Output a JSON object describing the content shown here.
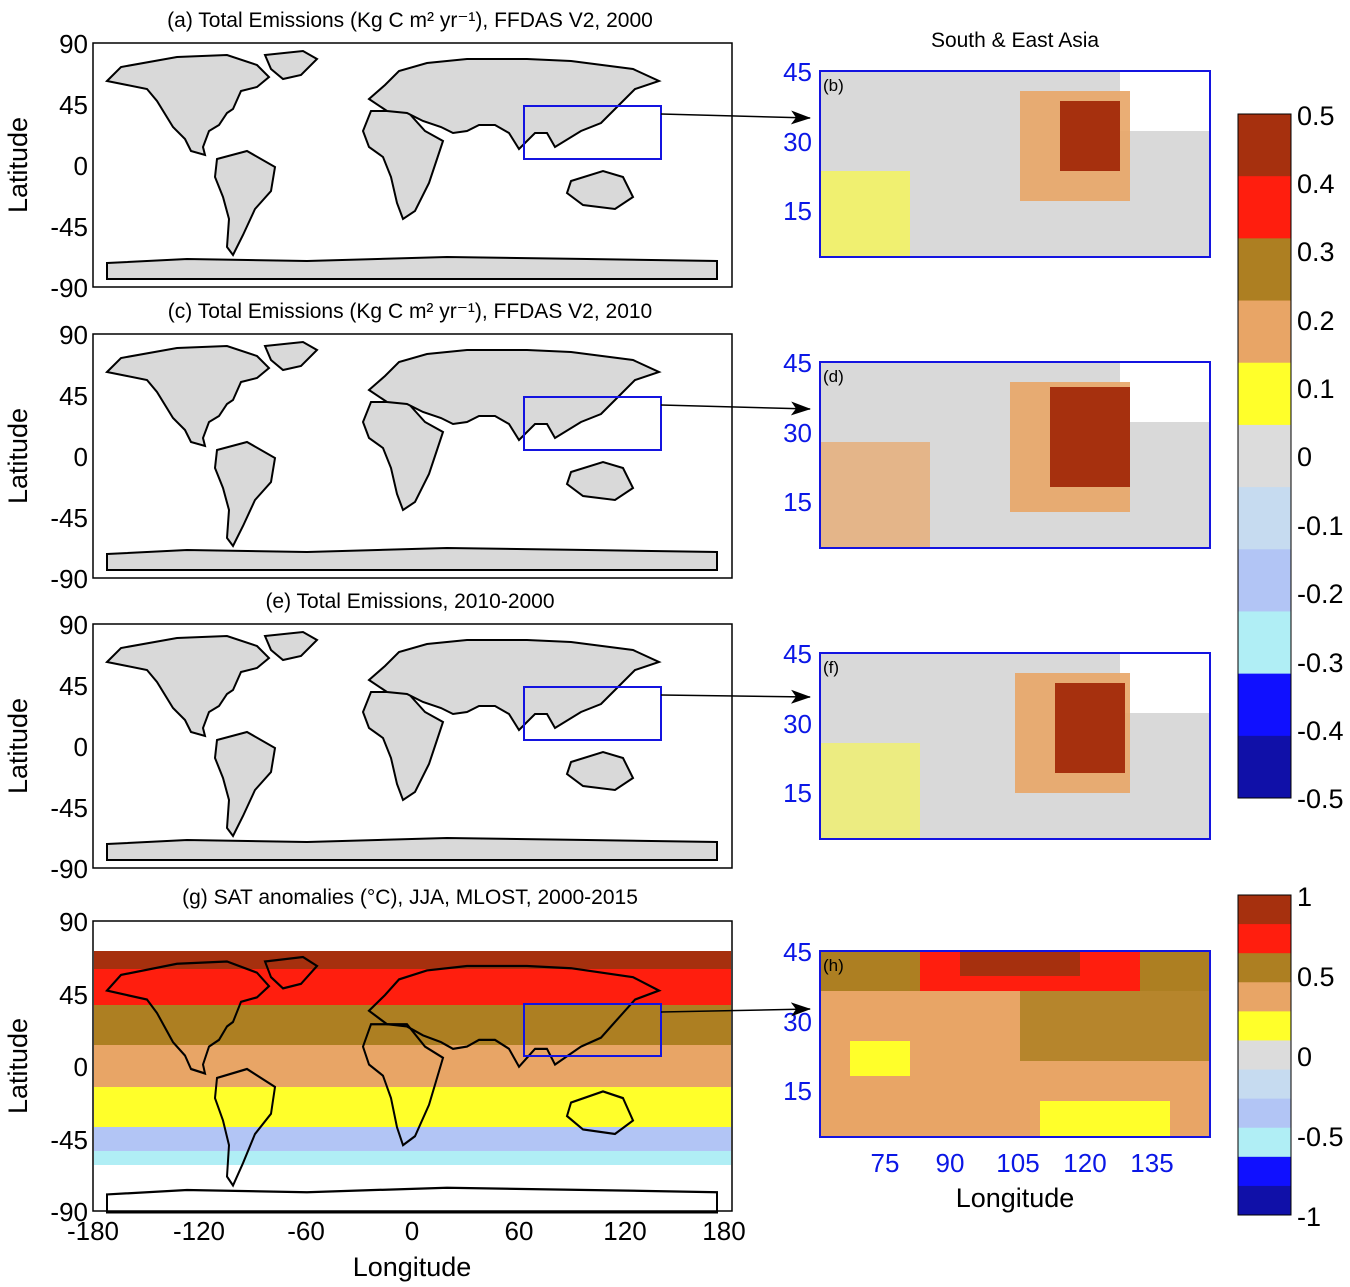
{
  "figure": {
    "panels": {
      "a": {
        "title": "(a) Total Emissions (Kg C m² yr⁻¹), FFDAS V2, 2000",
        "inset_label": "(b)"
      },
      "c": {
        "title": "(c) Total Emissions (Kg C m² yr⁻¹), FFDAS V2, 2010",
        "inset_label": "(d)"
      },
      "e": {
        "title": "(e) Total Emissions, 2010-2000",
        "inset_label": "(f)"
      },
      "g": {
        "title": "(g) SAT anomalies (°C), JJA, MLOST, 2000-2015",
        "inset_label": "(h)"
      }
    },
    "region_title": "South & East Asia",
    "ylabel": "Latitude",
    "xlabel": "Longitude",
    "global_lat_ticks": [
      "90",
      "45",
      "0",
      "-45",
      "-90"
    ],
    "global_lon_ticks": [
      "-180",
      "-120",
      "-60",
      "0",
      "60",
      "120",
      "180"
    ],
    "asia_lat_ticks": [
      "45",
      "30",
      "15"
    ],
    "asia_lon_ticks": [
      "75",
      "90",
      "105",
      "120",
      "135"
    ],
    "emission_colorbar": {
      "ticks": [
        "0.5",
        "0.4",
        "0.3",
        "0.2",
        "0.1",
        "0",
        "-0.1",
        "-0.2",
        "-0.3",
        "-0.4",
        "-0.5"
      ],
      "colors": [
        "#a6300e",
        "#ff1e0e",
        "#ad7f22",
        "#e8a566",
        "#ffff2a",
        "#dcdcdc",
        "#c6dbf0",
        "#b2c5f5",
        "#b0eef5",
        "#1010ff",
        "#1010a8"
      ]
    },
    "sat_colorbar": {
      "ticks": [
        "1",
        "0.5",
        "0",
        "-0.5",
        "-1"
      ],
      "colors": [
        "#a6300e",
        "#ff1e0e",
        "#ad7f22",
        "#e8a566",
        "#ffff2a",
        "#dcdcdc",
        "#c6dbf0",
        "#b2c5f5",
        "#b0eef5",
        "#1010ff",
        "#1010a8"
      ]
    },
    "colors": {
      "land_gray": "#d9d9d9",
      "box_blue": "#1414e0",
      "tick_blue": "#0b17e6"
    }
  }
}
